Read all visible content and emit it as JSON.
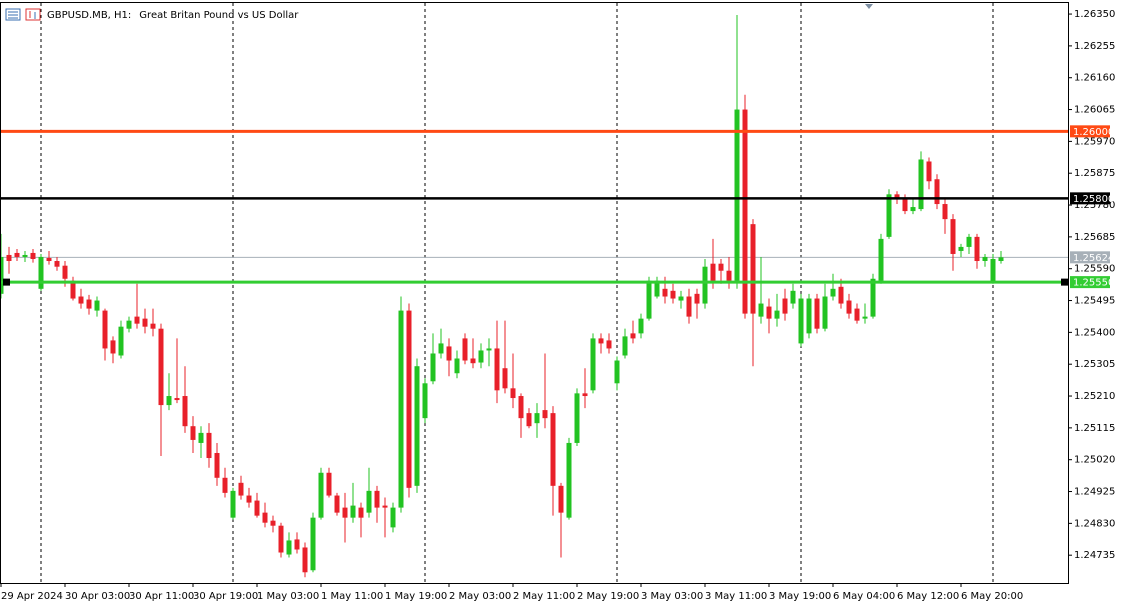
{
  "chart_data": {
    "type": "candlestick",
    "title": "GBPUSD.MB, H1:",
    "subtitle": "Great Britan Pound vs US Dollar",
    "categories": [
      "29 Apr 2024",
      null,
      null,
      null,
      null,
      null,
      null,
      null,
      "30 Apr 03:00",
      null,
      null,
      null,
      null,
      null,
      null,
      null,
      "30 Apr 11:00",
      null,
      null,
      null,
      null,
      null,
      null,
      null,
      "30 Apr 19:00",
      null,
      null,
      null,
      null,
      null,
      null,
      null,
      "1 May 03:00",
      null,
      null,
      null,
      null,
      null,
      null,
      null,
      "1 May 11:00",
      null,
      null,
      null,
      null,
      null,
      null,
      null,
      "1 May 19:00",
      null,
      null,
      null,
      null,
      null,
      null,
      null,
      "2 May 03:00",
      null,
      null,
      null,
      null,
      null,
      null,
      null,
      "2 May 11:00",
      null,
      null,
      null,
      null,
      null,
      null,
      null,
      "2 May 19:00",
      null,
      null,
      null,
      null,
      null,
      null,
      null,
      "3 May 03:00",
      null,
      null,
      null,
      null,
      null,
      null,
      null,
      "3 May 11:00",
      null,
      null,
      null,
      null,
      null,
      null,
      null,
      "3 May 19:00",
      null,
      null,
      null,
      null,
      null,
      null,
      null,
      "6 May 04:00",
      null,
      null,
      null,
      null,
      null,
      null,
      null,
      "6 May 12:00",
      null,
      null,
      null,
      null,
      null,
      null,
      null,
      "6 May 20:00",
      null,
      null,
      null,
      null,
      null
    ],
    "open": [
      1.25515,
      1.25631,
      1.25637,
      1.25625,
      1.25637,
      1.2553,
      1.25622,
      1.25613,
      1.25599,
      1.25554,
      1.25507,
      1.25498,
      1.25465,
      1.25465,
      1.25376,
      1.25331,
      1.25411,
      1.25447,
      1.25441,
      1.25426,
      1.25411,
      1.25183,
      1.25204,
      1.2521,
      1.2512,
      1.2507,
      1.251,
      1.2504,
      1.24966,
      1.24847,
      1.24951,
      1.24913,
      1.24898,
      1.24862,
      1.24838,
      1.24823,
      1.24737,
      1.24782,
      1.24758,
      1.2469,
      1.24847,
      1.24981,
      1.24913,
      1.24877,
      1.24847,
      1.24877,
      1.24862,
      1.24927,
      1.24883,
      1.24818,
      1.24877,
      1.25465,
      1.24942,
      1.25144,
      1.25254,
      1.25337,
      1.25358,
      1.25278,
      1.25382,
      1.25322,
      1.2531,
      1.25346,
      1.25352,
      1.25293,
      1.25233,
      1.2521,
      1.25159,
      1.25129,
      1.25168,
      1.25159,
      1.24942,
      1.24847,
      1.2507,
      1.25218,
      1.25227,
      1.25382,
      1.25376,
      1.25248,
      1.25331,
      1.25397,
      1.25397,
      1.25441,
      1.25507,
      1.2553,
      1.25524,
      1.25495,
      1.25507,
      1.25515,
      1.25486,
      1.25605,
      1.25605,
      1.25584,
      1.25554,
      1.26065,
      1.25723,
      1.25447,
      1.25477,
      1.25441,
      1.25501,
      1.25486,
      1.25367,
      1.25397,
      1.25501,
      1.25411,
      1.25507,
      1.25536,
      1.25495,
      1.25471,
      1.25441,
      1.25447,
      1.25554,
      1.25685,
      1.25812,
      1.25798,
      1.25762,
      1.25768,
      1.2591,
      1.25857,
      1.25783,
      1.25738,
      1.25643,
      1.25655,
      1.25685,
      1.25613,
      1.25551,
      1.25613
    ],
    "high": [
      1.25694,
      1.25655,
      1.25649,
      1.25643,
      1.25649,
      1.25634,
      1.25643,
      1.25625,
      1.25613,
      1.25566,
      1.2553,
      1.25512,
      1.25507,
      1.25471,
      1.25388,
      1.25435,
      1.25447,
      1.25545,
      1.25471,
      1.25471,
      1.25426,
      1.25278,
      1.25382,
      1.25299,
      1.2515,
      1.2512,
      1.25129,
      1.2507,
      1.24996,
      1.24936,
      1.24972,
      1.24936,
      1.24921,
      1.24892,
      1.24853,
      1.24832,
      1.24803,
      1.24803,
      1.24773,
      1.24862,
      1.24996,
      1.24996,
      1.24921,
      1.24921,
      1.24951,
      1.24892,
      1.24996,
      1.24942,
      1.24907,
      1.24892,
      1.25507,
      1.25486,
      1.25322,
      1.25263,
      1.25397,
      1.25411,
      1.25382,
      1.25346,
      1.25397,
      1.25382,
      1.25367,
      1.25382,
      1.25435,
      1.25435,
      1.25337,
      1.25218,
      1.25174,
      1.25189,
      1.25337,
      1.2518,
      1.24951,
      1.25085,
      1.25233,
      1.25293,
      1.25397,
      1.25397,
      1.25397,
      1.25328,
      1.25411,
      1.25435,
      1.25456,
      1.25566,
      1.25566,
      1.25566,
      1.25545,
      1.25524,
      1.2553,
      1.2553,
      1.25619,
      1.25679,
      1.25619,
      1.25625,
      1.26347,
      1.26109,
      1.25738,
      1.25625,
      1.25501,
      1.25515,
      1.2553,
      1.25545,
      1.25515,
      1.25515,
      1.25515,
      1.25545,
      1.25575,
      1.2556,
      1.25515,
      1.25486,
      1.25486,
      1.25575,
      1.25694,
      1.25827,
      1.25821,
      1.25812,
      1.25798,
      1.2594,
      1.25922,
      1.25872,
      1.25798,
      1.25753,
      1.25664,
      1.25694,
      1.25694,
      1.25634,
      1.25634,
      1.25643
    ],
    "low": [
      1.25501,
      1.25575,
      1.25613,
      1.2561,
      1.25608,
      1.25524,
      1.25602,
      1.25584,
      1.25536,
      1.25495,
      1.25471,
      1.25453,
      1.25447,
      1.25316,
      1.25308,
      1.25322,
      1.254,
      1.25411,
      1.25397,
      1.25388,
      1.25031,
      1.25168,
      1.25189,
      1.251,
      1.2504,
      1.25025,
      1.24996,
      1.24942,
      1.24907,
      1.24841,
      1.24901,
      1.24877,
      1.24847,
      1.24818,
      1.24803,
      1.24728,
      1.24728,
      1.2474,
      1.24669,
      1.24684,
      1.24841,
      1.24907,
      1.24853,
      1.24773,
      1.24832,
      1.24788,
      1.24847,
      1.24832,
      1.24788,
      1.24803,
      1.24862,
      1.24907,
      1.24921,
      1.25129,
      1.25245,
      1.25322,
      1.25269,
      1.25263,
      1.25305,
      1.25293,
      1.25293,
      1.25299,
      1.25189,
      1.25218,
      1.25174,
      1.25085,
      1.25114,
      1.25085,
      1.25114,
      1.24853,
      1.24728,
      1.24841,
      1.25061,
      1.25174,
      1.25218,
      1.25337,
      1.25337,
      1.25227,
      1.25322,
      1.25367,
      1.25382,
      1.25435,
      1.25501,
      1.25486,
      1.25486,
      1.25471,
      1.25426,
      1.25441,
      1.25471,
      1.2553,
      1.25545,
      1.2553,
      1.2553,
      1.25441,
      1.25299,
      1.25426,
      1.25397,
      1.25417,
      1.25435,
      1.25471,
      1.25358,
      1.25382,
      1.25397,
      1.25403,
      1.25495,
      1.25471,
      1.25441,
      1.25426,
      1.25426,
      1.25441,
      1.25545,
      1.25679,
      1.25783,
      1.25753,
      1.25753,
      1.25762,
      1.25827,
      1.25768,
      1.25694,
      1.25584,
      1.25625,
      1.25634,
      1.2559,
      1.25596,
      1.25545,
      1.25605
    ],
    "close": [
      1.25625,
      1.25613,
      1.25625,
      1.25631,
      1.25619,
      1.25625,
      1.25613,
      1.25596,
      1.2556,
      1.25501,
      1.25486,
      1.25471,
      1.25495,
      1.25352,
      1.25337,
      1.25417,
      1.25435,
      1.25426,
      1.25417,
      1.25411,
      1.25183,
      1.2521,
      1.25198,
      1.2512,
      1.25079,
      1.251,
      1.25025,
      1.24966,
      1.24921,
      1.24927,
      1.24913,
      1.24892,
      1.24853,
      1.24832,
      1.24823,
      1.24743,
      1.24779,
      1.24752,
      1.24684,
      1.24847,
      1.24981,
      1.24913,
      1.24862,
      1.24847,
      1.24883,
      1.24847,
      1.24927,
      1.24877,
      1.24877,
      1.24877,
      1.25465,
      1.24936,
      1.25299,
      1.25248,
      1.25337,
      1.25367,
      1.25316,
      1.25322,
      1.25316,
      1.25308,
      1.25346,
      1.25352,
      1.25227,
      1.25233,
      1.25204,
      1.25144,
      1.2512,
      1.25159,
      1.25144,
      1.24942,
      1.24862,
      1.2507,
      1.25218,
      1.2521,
      1.25382,
      1.25367,
      1.25352,
      1.25316,
      1.25388,
      1.25382,
      1.25441,
      1.25554,
      1.25554,
      1.25507,
      1.25501,
      1.25507,
      1.25447,
      1.25486,
      1.25596,
      1.25554,
      1.25584,
      1.25554,
      1.26065,
      1.25456,
      1.25456,
      1.25486,
      1.25441,
      1.25465,
      1.25456,
      1.25524,
      1.25501,
      1.25501,
      1.25411,
      1.25507,
      1.2553,
      1.25486,
      1.25456,
      1.25435,
      1.25447,
      1.2556,
      1.25679,
      1.25812,
      1.25798,
      1.25762,
      1.25774,
      1.25916,
      1.25851,
      1.25783,
      1.25738,
      1.25634,
      1.25655,
      1.25685,
      1.25613,
      1.25625,
      1.25619,
      1.25624
    ],
    "up_color": "#22c322",
    "down_color": "#e8202a",
    "ylim": [
      1.24652,
      1.26383
    ],
    "yticks": [
      {
        "value": 1.2635,
        "label": "1.26350"
      },
      1.26255,
      {
        "value": 1.2616,
        "label": "1.26160"
      },
      1.26065,
      {
        "value": 1.2597,
        "label": "1.25970"
      },
      1.25875,
      {
        "value": 1.2578,
        "label": "1.25780"
      },
      1.25685,
      {
        "value": 1.2559,
        "label": "1.25590"
      },
      1.25495,
      {
        "value": 1.254,
        "label": "1.25400"
      },
      1.25305,
      {
        "value": 1.2521,
        "label": "1.25210"
      },
      1.25115,
      {
        "value": 1.2502,
        "label": "1.25020"
      },
      1.24925,
      {
        "value": 1.2483,
        "label": "1.24830"
      },
      1.24735
    ],
    "levels": [
      {
        "value": 1.26,
        "label": "1.26000",
        "color": "#ff4a14"
      },
      {
        "value": 1.258,
        "label": "1.25800",
        "color": "#000000"
      },
      {
        "value": 1.2555,
        "label": "1.25550",
        "color": "#32cd32"
      }
    ],
    "last_price": {
      "value": 1.25624,
      "label": "1.25624",
      "color": "#a7b0b8"
    },
    "grid": false
  }
}
